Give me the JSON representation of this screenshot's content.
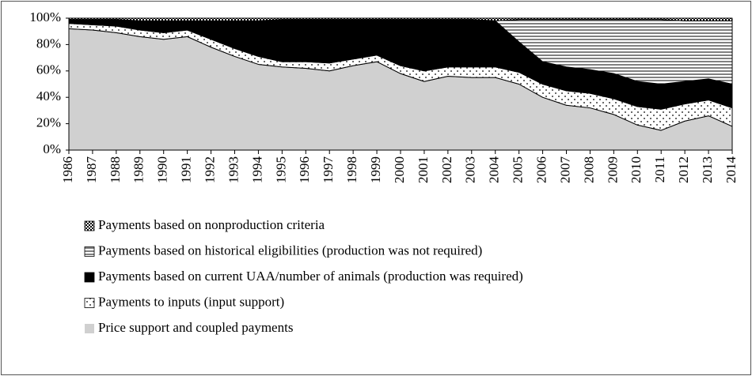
{
  "chart_data": {
    "type": "stacked_area",
    "x": [
      1986,
      1987,
      1988,
      1989,
      1990,
      1991,
      1992,
      1993,
      1994,
      1995,
      1996,
      1997,
      1998,
      1999,
      2000,
      2001,
      2002,
      2003,
      2004,
      2005,
      2006,
      2007,
      2008,
      2009,
      2010,
      2011,
      2012,
      2013,
      2014
    ],
    "xlim": [
      1986,
      2014
    ],
    "ylim": [
      0,
      100
    ],
    "yticks": [
      {
        "value": 0,
        "label": "0%"
      },
      {
        "value": 20,
        "label": "20%"
      },
      {
        "value": 40,
        "label": "40%"
      },
      {
        "value": 60,
        "label": "60%"
      },
      {
        "value": 80,
        "label": "80%"
      },
      {
        "value": 100,
        "label": "100%"
      }
    ],
    "series": [
      {
        "name": "Price support and coupled payments",
        "color": "#d0d0d0",
        "values": [
          92,
          91,
          89,
          86,
          84,
          86,
          78,
          71,
          65,
          63,
          62,
          60,
          64,
          67,
          58,
          52,
          56,
          55,
          55,
          50,
          40,
          34,
          32,
          27,
          19,
          15,
          22,
          26,
          18
        ]
      },
      {
        "name": "Payments to inputs (input support)",
        "color": "dots",
        "values": [
          4,
          4,
          5,
          5,
          5,
          5,
          6,
          6,
          6,
          4,
          5,
          6,
          5,
          5,
          6,
          8,
          7,
          8,
          8,
          9,
          10,
          11,
          11,
          12,
          14,
          16,
          13,
          12,
          14
        ]
      },
      {
        "name": "Payments based on current UAA/number of animals (production was required)",
        "color": "#000000",
        "values": [
          3,
          4,
          5,
          7,
          9,
          7,
          14,
          21,
          27,
          32,
          32,
          33,
          30,
          27,
          35,
          39,
          36,
          36,
          35,
          23,
          17,
          18,
          18,
          19,
          19,
          19,
          17,
          16,
          18
        ]
      },
      {
        "name": "Payments based on historical eligibilities (production was not required)",
        "color": "hlines",
        "values": [
          0,
          0,
          0,
          0,
          0,
          0,
          0,
          0,
          0,
          0,
          0,
          0,
          0,
          0,
          0,
          0,
          0,
          0,
          0,
          17,
          32,
          36,
          38,
          41,
          47,
          49,
          46,
          44,
          48
        ]
      },
      {
        "name": "Payments based on nonproduction criteria",
        "color": "checker",
        "values": [
          1,
          1,
          1,
          2,
          2,
          2,
          2,
          2,
          2,
          1,
          1,
          1,
          1,
          1,
          1,
          1,
          1,
          1,
          2,
          1,
          1,
          1,
          1,
          1,
          1,
          1,
          2,
          2,
          2
        ]
      }
    ],
    "legend": "bottom-left"
  }
}
